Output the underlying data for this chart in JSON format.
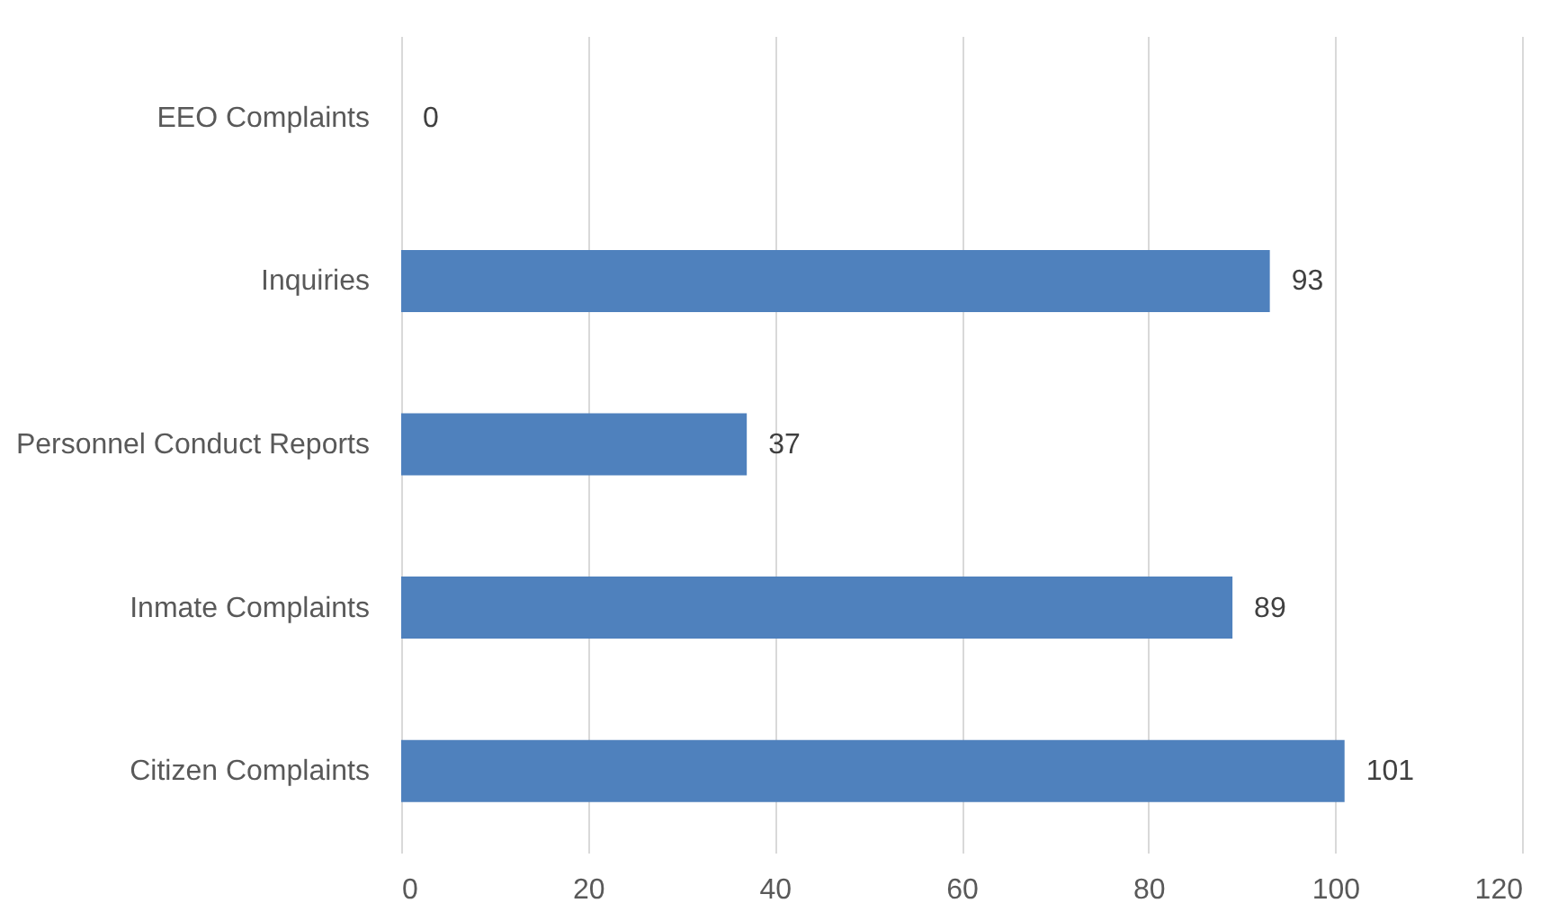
{
  "chart_data": {
    "type": "bar",
    "orientation": "horizontal",
    "categories": [
      "EEO Complaints",
      "Inquiries",
      "Personnel Conduct Reports",
      "Inmate Complaints",
      "Citizen Complaints"
    ],
    "values": [
      0,
      93,
      37,
      89,
      101
    ],
    "color": "#4f81bd",
    "xlim": [
      0,
      120
    ],
    "xticks": [
      0,
      20,
      40,
      60,
      80,
      100,
      120
    ],
    "grid": "x",
    "data_labels": true
  }
}
